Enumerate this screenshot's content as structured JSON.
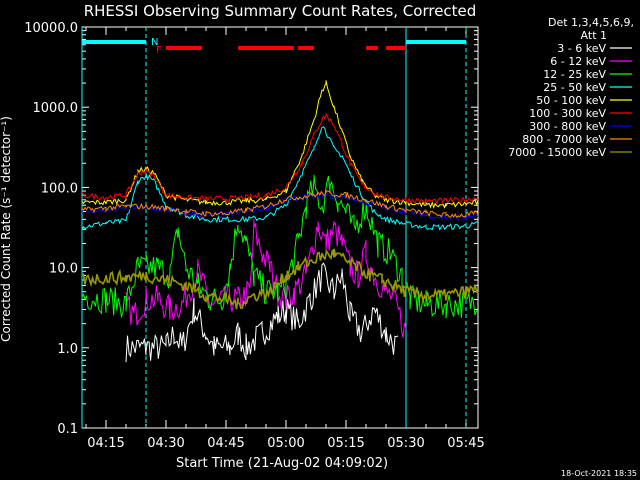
{
  "chart_data": {
    "type": "line",
    "title": "RHESSI Observing Summary Count Rates, Corrected",
    "xlabel": "Start Time (21-Aug-02 04:09:02)",
    "ylabel": "Corrected Count Rate (s⁻¹ detector⁻¹)",
    "y_scale": "log",
    "ylim": [
      0.1,
      10000
    ],
    "xlim": [
      "04:09",
      "05:48"
    ],
    "x_ticks": [
      "04:15",
      "04:30",
      "04:45",
      "05:00",
      "05:15",
      "05:30",
      "05:45"
    ],
    "y_ticks": [
      "0.1",
      "1.0",
      "10.0",
      "100.0",
      "1000.0",
      "10000.0"
    ],
    "legend_header": [
      "Det 1,3,4,5,6,9,",
      "Att 1"
    ],
    "legend_position": "right",
    "footer": "18-Oct-2021 18:35",
    "flags": {
      "night_label": "N",
      "flare_label": "F",
      "night_intervals": [
        [
          "04:09",
          "04:25"
        ],
        [
          "05:30",
          "05:45"
        ]
      ],
      "flare_intervals": [
        [
          "04:30",
          "04:39"
        ],
        [
          "04:48",
          "05:02"
        ],
        [
          "05:03",
          "05:07"
        ],
        [
          "05:20",
          "05:23"
        ],
        [
          "05:25",
          "05:30"
        ]
      ],
      "boundaries_dashed": [
        "04:25",
        "05:45"
      ],
      "boundaries_solid": [
        "04:09",
        "05:30"
      ]
    },
    "series": [
      {
        "name": "3 - 6 keV",
        "color": "#ffffff",
        "points": [
          [
            "04:20",
            1
          ],
          [
            "04:25",
            1
          ],
          [
            "04:30",
            1
          ],
          [
            "04:32",
            1.5
          ],
          [
            "04:34",
            1
          ],
          [
            "04:37",
            3
          ],
          [
            "04:40",
            1.5
          ],
          [
            "04:42",
            1
          ],
          [
            "04:46",
            1
          ],
          [
            "04:48",
            1.5
          ],
          [
            "04:50",
            1
          ],
          [
            "04:54",
            1.5
          ],
          [
            "04:58",
            2.5
          ],
          [
            "05:00",
            3
          ],
          [
            "05:03",
            2
          ],
          [
            "05:06",
            4
          ],
          [
            "05:09",
            8
          ],
          [
            "05:12",
            5
          ],
          [
            "05:14",
            8
          ],
          [
            "05:16",
            2.5
          ],
          [
            "05:19",
            1.5
          ],
          [
            "05:22",
            3
          ],
          [
            "05:25",
            1.5
          ],
          [
            "05:28",
            1
          ]
        ]
      },
      {
        "name": "6 - 12 keV",
        "color": "#ff00ff",
        "points": [
          [
            "04:20",
            3.5
          ],
          [
            "04:22",
            2.5
          ],
          [
            "04:25",
            4
          ],
          [
            "04:28",
            4
          ],
          [
            "04:31",
            3
          ],
          [
            "04:34",
            3.5
          ],
          [
            "04:38",
            9
          ],
          [
            "04:41",
            3.5
          ],
          [
            "04:43",
            3.5
          ],
          [
            "04:45",
            4
          ],
          [
            "04:48",
            4
          ],
          [
            "04:51",
            5
          ],
          [
            "04:52",
            30
          ],
          [
            "04:54",
            15
          ],
          [
            "04:56",
            10
          ],
          [
            "04:58",
            5
          ],
          [
            "05:00",
            4
          ],
          [
            "05:02",
            5
          ],
          [
            "05:05",
            8
          ],
          [
            "05:08",
            35
          ],
          [
            "05:10",
            20
          ],
          [
            "05:12",
            30
          ],
          [
            "05:14",
            20
          ],
          [
            "05:16",
            10
          ],
          [
            "05:18",
            8
          ],
          [
            "05:20",
            15
          ],
          [
            "05:22",
            8
          ],
          [
            "05:25",
            5
          ],
          [
            "05:27",
            4
          ],
          [
            "05:30",
            1.5
          ]
        ]
      },
      {
        "name": "12 - 25 keV",
        "color": "#00ff00",
        "points": [
          [
            "04:09",
            4.5
          ],
          [
            "04:15",
            4
          ],
          [
            "04:20",
            3.5
          ],
          [
            "04:23",
            10
          ],
          [
            "04:25",
            10
          ],
          [
            "04:28",
            10
          ],
          [
            "04:31",
            8
          ],
          [
            "04:33",
            30
          ],
          [
            "04:35",
            10
          ],
          [
            "04:38",
            6
          ],
          [
            "04:41",
            4
          ],
          [
            "04:44",
            4
          ],
          [
            "04:46",
            10
          ],
          [
            "04:48",
            40
          ],
          [
            "04:50",
            20
          ],
          [
            "04:52",
            8
          ],
          [
            "04:55",
            5
          ],
          [
            "04:58",
            5
          ],
          [
            "05:00",
            6
          ],
          [
            "05:03",
            20
          ],
          [
            "05:05",
            60
          ],
          [
            "05:07",
            100
          ],
          [
            "05:09",
            60
          ],
          [
            "05:11",
            120
          ],
          [
            "05:13",
            70
          ],
          [
            "05:15",
            50
          ],
          [
            "05:17",
            30
          ],
          [
            "05:20",
            60
          ],
          [
            "05:23",
            20
          ],
          [
            "05:26",
            15
          ],
          [
            "05:29",
            8
          ],
          [
            "05:31",
            4
          ],
          [
            "05:35",
            3.5
          ],
          [
            "05:40",
            3.5
          ],
          [
            "05:45",
            3.5
          ],
          [
            "05:48",
            4
          ]
        ]
      },
      {
        "name": "25 - 50 keV",
        "color": "#00ffff",
        "points": [
          [
            "04:09",
            32
          ],
          [
            "04:15",
            36
          ],
          [
            "04:20",
            38
          ],
          [
            "04:23",
            120
          ],
          [
            "04:25",
            140
          ],
          [
            "04:27",
            120
          ],
          [
            "04:30",
            60
          ],
          [
            "04:35",
            45
          ],
          [
            "04:40",
            40
          ],
          [
            "04:45",
            40
          ],
          [
            "04:50",
            40
          ],
          [
            "04:55",
            42
          ],
          [
            "05:00",
            60
          ],
          [
            "05:04",
            150
          ],
          [
            "05:07",
            300
          ],
          [
            "05:09",
            600
          ],
          [
            "05:10",
            500
          ],
          [
            "05:12",
            300
          ],
          [
            "05:14",
            250
          ],
          [
            "05:16",
            150
          ],
          [
            "05:19",
            80
          ],
          [
            "05:22",
            50
          ],
          [
            "05:25",
            40
          ],
          [
            "05:30",
            35
          ],
          [
            "05:35",
            32
          ],
          [
            "05:40",
            32
          ],
          [
            "05:45",
            33
          ],
          [
            "05:48",
            35
          ]
        ]
      },
      {
        "name": "50 - 100 keV",
        "color": "#ffff00",
        "points": [
          [
            "04:09",
            65
          ],
          [
            "04:15",
            65
          ],
          [
            "04:20",
            70
          ],
          [
            "04:23",
            160
          ],
          [
            "04:25",
            170
          ],
          [
            "04:27",
            150
          ],
          [
            "04:30",
            80
          ],
          [
            "04:35",
            70
          ],
          [
            "04:40",
            65
          ],
          [
            "04:45",
            65
          ],
          [
            "04:50",
            68
          ],
          [
            "04:55",
            70
          ],
          [
            "05:00",
            90
          ],
          [
            "05:04",
            250
          ],
          [
            "05:07",
            700
          ],
          [
            "05:09",
            1600
          ],
          [
            "05:10",
            2000
          ],
          [
            "05:12",
            1000
          ],
          [
            "05:14",
            500
          ],
          [
            "05:16",
            250
          ],
          [
            "05:19",
            120
          ],
          [
            "05:22",
            80
          ],
          [
            "05:25",
            70
          ],
          [
            "05:30",
            65
          ],
          [
            "05:35",
            60
          ],
          [
            "05:40",
            60
          ],
          [
            "05:45",
            62
          ],
          [
            "05:48",
            65
          ]
        ]
      },
      {
        "name": "100 - 300 keV",
        "color": "#ff0000",
        "points": [
          [
            "04:09",
            80
          ],
          [
            "04:15",
            75
          ],
          [
            "04:20",
            80
          ],
          [
            "04:23",
            150
          ],
          [
            "04:25",
            160
          ],
          [
            "04:27",
            140
          ],
          [
            "04:30",
            80
          ],
          [
            "04:35",
            75
          ],
          [
            "04:40",
            72
          ],
          [
            "04:45",
            72
          ],
          [
            "04:50",
            75
          ],
          [
            "04:55",
            80
          ],
          [
            "05:00",
            100
          ],
          [
            "05:04",
            200
          ],
          [
            "05:07",
            450
          ],
          [
            "05:09",
            700
          ],
          [
            "05:10",
            800
          ],
          [
            "05:12",
            600
          ],
          [
            "05:14",
            350
          ],
          [
            "05:16",
            200
          ],
          [
            "05:19",
            110
          ],
          [
            "05:22",
            85
          ],
          [
            "05:25",
            75
          ],
          [
            "05:30",
            70
          ],
          [
            "05:35",
            68
          ],
          [
            "05:40",
            68
          ],
          [
            "05:45",
            70
          ],
          [
            "05:48",
            75
          ]
        ]
      },
      {
        "name": "300 - 800 keV",
        "color": "#0000ff",
        "points": [
          [
            "04:09",
            50
          ],
          [
            "04:15",
            52
          ],
          [
            "04:20",
            55
          ],
          [
            "04:25",
            55
          ],
          [
            "04:30",
            53
          ],
          [
            "04:35",
            48
          ],
          [
            "04:40",
            45
          ],
          [
            "04:45",
            45
          ],
          [
            "04:50",
            50
          ],
          [
            "04:55",
            55
          ],
          [
            "05:00",
            70
          ],
          [
            "05:05",
            75
          ],
          [
            "05:10",
            80
          ],
          [
            "05:15",
            75
          ],
          [
            "05:20",
            65
          ],
          [
            "05:25",
            55
          ],
          [
            "05:30",
            50
          ],
          [
            "05:35",
            45
          ],
          [
            "05:40",
            42
          ],
          [
            "05:45",
            42
          ],
          [
            "05:48",
            45
          ]
        ]
      },
      {
        "name": "800 - 7000 keV",
        "color": "#ff8800",
        "points": [
          [
            "04:09",
            52
          ],
          [
            "04:15",
            55
          ],
          [
            "04:20",
            58
          ],
          [
            "04:25",
            58
          ],
          [
            "04:30",
            55
          ],
          [
            "04:35",
            50
          ],
          [
            "04:40",
            47
          ],
          [
            "04:45",
            47
          ],
          [
            "04:50",
            52
          ],
          [
            "04:55",
            58
          ],
          [
            "05:00",
            72
          ],
          [
            "05:05",
            78
          ],
          [
            "05:10",
            85
          ],
          [
            "05:15",
            80
          ],
          [
            "05:20",
            70
          ],
          [
            "05:25",
            58
          ],
          [
            "05:30",
            52
          ],
          [
            "05:35",
            48
          ],
          [
            "05:40",
            45
          ],
          [
            "05:45",
            45
          ],
          [
            "05:48",
            48
          ]
        ]
      },
      {
        "name": "7000 - 15000 keV",
        "color": "#999900",
        "points": [
          [
            "04:09",
            7
          ],
          [
            "04:15",
            7.5
          ],
          [
            "04:20",
            7.5
          ],
          [
            "04:25",
            8
          ],
          [
            "04:30",
            7
          ],
          [
            "04:35",
            6
          ],
          [
            "04:40",
            4.5
          ],
          [
            "04:45",
            4
          ],
          [
            "04:48",
            3.5
          ],
          [
            "04:52",
            4.5
          ],
          [
            "04:56",
            5
          ],
          [
            "05:00",
            8
          ],
          [
            "05:03",
            10
          ],
          [
            "05:06",
            12
          ],
          [
            "05:09",
            14
          ],
          [
            "05:12",
            15
          ],
          [
            "05:15",
            12
          ],
          [
            "05:18",
            10
          ],
          [
            "05:21",
            8
          ],
          [
            "05:24",
            7
          ],
          [
            "05:27",
            6
          ],
          [
            "05:30",
            5
          ],
          [
            "05:35",
            4.5
          ],
          [
            "05:40",
            4.5
          ],
          [
            "05:45",
            5
          ],
          [
            "05:48",
            5.5
          ]
        ]
      }
    ]
  }
}
